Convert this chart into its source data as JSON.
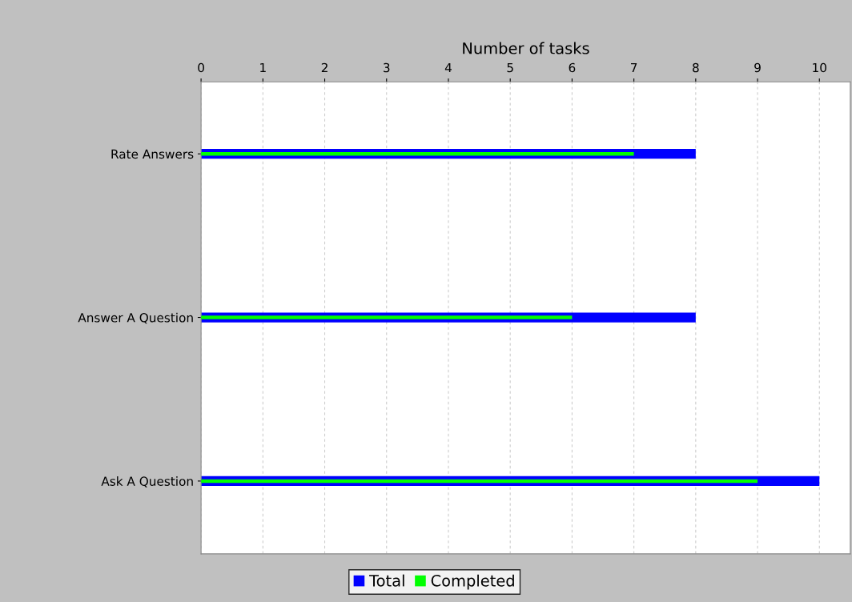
{
  "chart_data": {
    "type": "bar",
    "orientation": "horizontal",
    "xlabel": "Number of tasks",
    "categories": [
      "Rate Answers",
      "Answer A Question",
      "Ask A Question"
    ],
    "series": [
      {
        "name": "Total",
        "color": "#0000ff",
        "values": [
          8,
          8,
          10
        ]
      },
      {
        "name": "Completed",
        "color": "#00ff00",
        "values": [
          7,
          6,
          9
        ]
      }
    ],
    "xlim": [
      0,
      10.5
    ],
    "xticks": [
      0,
      1,
      2,
      3,
      4,
      5,
      6,
      7,
      8,
      9,
      10
    ],
    "grid": "x",
    "legend": "bottom"
  }
}
